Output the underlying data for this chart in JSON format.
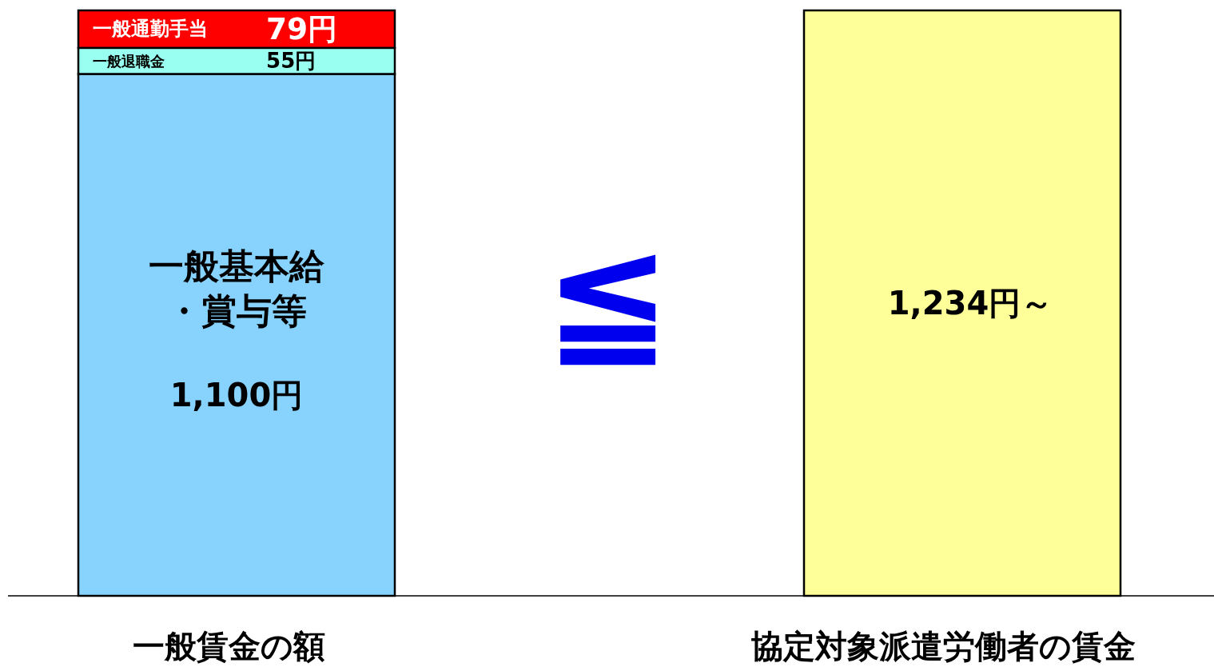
{
  "chart_data": {
    "type": "bar",
    "stacked": true,
    "tick_labels": "x",
    "categories": [
      "一般賃金の額",
      "協定対象派遣労働者の賃金"
    ],
    "series": [
      {
        "name": "一般基本給・賞与等",
        "color": "#87d3fd",
        "values": [
          1100,
          null
        ],
        "value_labels": [
          "1,100円",
          null
        ]
      },
      {
        "name": "一般退職金",
        "color": "#99fff0",
        "values": [
          55,
          null
        ],
        "value_labels": [
          "55円",
          null
        ]
      },
      {
        "name": "一般通勤手当",
        "color": "#ff0000",
        "values": [
          79,
          null
        ],
        "value_labels": [
          "79円",
          null
        ]
      },
      {
        "color": "#ffff99",
        "values": [
          null,
          1234
        ],
        "value_labels": [
          null,
          "1,234円～"
        ]
      }
    ],
    "annotations": [
      "≦"
    ]
  }
}
